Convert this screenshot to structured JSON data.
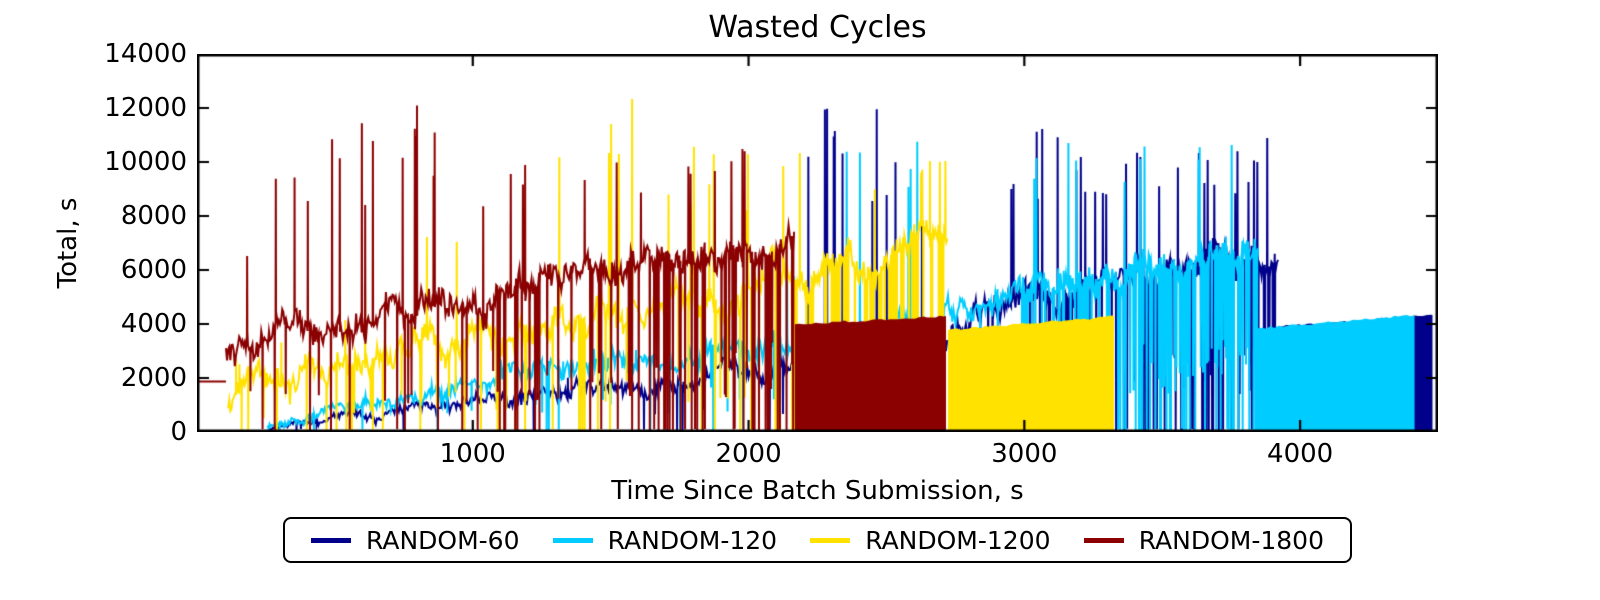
{
  "chart_data": {
    "type": "line",
    "title": "Wasted Cycles",
    "xlabel": "Time Since Batch Submission, s",
    "ylabel": "Total, s",
    "xlim": [
      0,
      4500
    ],
    "ylim": [
      0,
      14000
    ],
    "xticks": [
      1000,
      2000,
      3000,
      4000
    ],
    "yticks": [
      0,
      2000,
      4000,
      6000,
      8000,
      10000,
      12000,
      14000
    ],
    "grid": false,
    "tick_direction": "in",
    "legend_position": "bottom-center",
    "axis_color": "#000000",
    "background": "#ffffff",
    "series": [
      {
        "name": "RANDOM-60",
        "color": "#00008B",
        "seed": 7,
        "flat": null,
        "band": [
          [
            260,
            120,
            120,
            300
          ],
          [
            600,
            600,
            300,
            900
          ],
          [
            1000,
            1050,
            450,
            1500
          ],
          [
            1400,
            1500,
            500,
            2300
          ],
          [
            1800,
            2050,
            520,
            3100
          ],
          [
            2100,
            2550,
            550,
            4200
          ],
          [
            2250,
            2900,
            600,
            12650
          ],
          [
            2500,
            3300,
            650,
            12700
          ],
          [
            2750,
            4000,
            750,
            12000
          ],
          [
            3000,
            4800,
            850,
            11500
          ],
          [
            3300,
            5500,
            850,
            10500
          ],
          [
            3600,
            6100,
            800,
            11200
          ],
          [
            3920,
            6450,
            720,
            10900
          ]
        ],
        "spike_prob": [
          [
            260,
            0.004
          ],
          [
            2100,
            0.01
          ],
          [
            2250,
            0.055
          ],
          [
            3000,
            0.06
          ],
          [
            3920,
            0.07
          ]
        ],
        "dip_prob": [
          [
            260,
            0.012
          ],
          [
            2000,
            0.025
          ],
          [
            2700,
            0.06
          ],
          [
            3325,
            0.32
          ],
          [
            3920,
            0.45
          ]
        ],
        "tail": {
          "from": 3920,
          "to": 4480,
          "top_from": 3900,
          "top_to": 4330
        }
      },
      {
        "name": "RANDOM-120",
        "color": "#00CCFF",
        "seed": 13,
        "flat": null,
        "band": [
          [
            255,
            250,
            180,
            450
          ],
          [
            600,
            1000,
            400,
            1300
          ],
          [
            1000,
            1800,
            600,
            2400
          ],
          [
            1400,
            2450,
            700,
            3100
          ],
          [
            1800,
            2800,
            650,
            3600
          ],
          [
            2100,
            3200,
            650,
            4600
          ],
          [
            2300,
            3500,
            650,
            11000
          ],
          [
            2600,
            3900,
            700,
            12200
          ],
          [
            2800,
            4500,
            800,
            12950
          ],
          [
            3100,
            5400,
            880,
            10800
          ],
          [
            3400,
            6000,
            880,
            10900
          ],
          [
            3700,
            6600,
            820,
            10900
          ],
          [
            3847,
            7000,
            750,
            10400
          ]
        ],
        "spike_prob": [
          [
            255,
            0.004
          ],
          [
            2250,
            0.01
          ],
          [
            2400,
            0.05
          ],
          [
            2900,
            0.055
          ],
          [
            3847,
            0.06
          ]
        ],
        "dip_prob": [
          [
            255,
            0.015
          ],
          [
            1500,
            0.03
          ],
          [
            3000,
            0.06
          ],
          [
            3325,
            0.42
          ],
          [
            3847,
            0.5
          ]
        ],
        "tail": {
          "from": 3847,
          "to": 4415,
          "top_from": 3840,
          "top_to": 4330
        }
      },
      {
        "name": "RANDOM-1200",
        "color": "#FFE200",
        "seed": 3,
        "flat": null,
        "band": [
          [
            113,
            1100,
            900,
            2600
          ],
          [
            300,
            1700,
            900,
            3700
          ],
          [
            600,
            2600,
            900,
            5300
          ],
          [
            900,
            3300,
            900,
            8100
          ],
          [
            1100,
            3700,
            900,
            10400
          ],
          [
            1300,
            4100,
            950,
            12900
          ],
          [
            1600,
            4600,
            950,
            12700
          ],
          [
            1850,
            5100,
            950,
            10400
          ],
          [
            2100,
            5600,
            950,
            10800
          ],
          [
            2400,
            6300,
            950,
            10900
          ],
          [
            2723,
            7000,
            950,
            10900
          ]
        ],
        "spike_prob": [
          [
            113,
            0.02
          ],
          [
            900,
            0.045
          ],
          [
            1300,
            0.06
          ],
          [
            1700,
            0.045
          ],
          [
            2723,
            0.05
          ]
        ],
        "dip_prob": [
          [
            113,
            0.06
          ],
          [
            1000,
            0.08
          ],
          [
            1800,
            0.14
          ],
          [
            2300,
            0.3
          ],
          [
            2723,
            0.35
          ]
        ],
        "tail": {
          "from": 2723,
          "to": 3325,
          "top_from": 3780,
          "top_to": 4280
        }
      },
      {
        "name": "RANDOM-1800",
        "color": "#8B0000",
        "seed": 5,
        "flat": {
          "from": 0,
          "to": 105,
          "value": 1870
        },
        "band": [
          [
            105,
            2800,
            950,
            5600
          ],
          [
            250,
            3300,
            900,
            9700
          ],
          [
            420,
            3800,
            880,
            11000
          ],
          [
            650,
            4200,
            880,
            12450
          ],
          [
            900,
            4700,
            900,
            12500
          ],
          [
            1150,
            5100,
            900,
            10500
          ],
          [
            1450,
            5700,
            950,
            11500
          ],
          [
            1750,
            6300,
            950,
            9800
          ],
          [
            2000,
            6800,
            900,
            10700
          ],
          [
            2168,
            7000,
            850,
            10800
          ]
        ],
        "spike_prob": [
          [
            105,
            0.03
          ],
          [
            400,
            0.06
          ],
          [
            1000,
            0.06
          ],
          [
            1400,
            0.045
          ],
          [
            2168,
            0.05
          ]
        ],
        "dip_prob": [
          [
            105,
            0.03
          ],
          [
            600,
            0.06
          ],
          [
            1200,
            0.11
          ],
          [
            1700,
            0.25
          ],
          [
            2168,
            0.3
          ]
        ],
        "tail": {
          "from": 2168,
          "to": 2716,
          "top_from": 3990,
          "top_to": 4300
        }
      }
    ]
  }
}
